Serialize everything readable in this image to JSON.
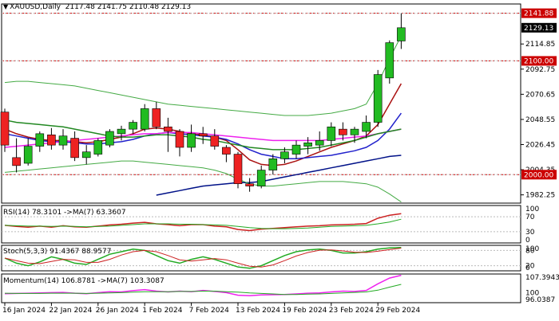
{
  "header": {
    "arrow_glyph": "▼",
    "symbol": "XAUUSD,Daily",
    "ohlc": "2117.48 2141.75 2110.48 2129.13"
  },
  "indicators": {
    "rsi": {
      "label": "RSI(14) 78.3101  ->MA(7) 63.3607",
      "levels": [
        100,
        70,
        30,
        0
      ]
    },
    "stoch": {
      "label": "Stoch(5,3,3) 91.4367 88.9577",
      "levels": [
        100,
        80,
        20,
        0
      ]
    },
    "momentum": {
      "label": "Momentum(14) 106.8781  ->MA(7) 103.3087",
      "levels": [
        107.3943,
        100,
        96.0387
      ]
    }
  },
  "colors": {
    "bull": "#22bb22",
    "bear": "#ee2222",
    "grid_line": "#cc0000",
    "ma_dark_red": "#aa1111",
    "ma_blue": "#2222cc",
    "ma_navy": "#001188",
    "ma_magenta": "#ee22ee",
    "ma_green": "#228822",
    "bb": "#44aa44",
    "slow_red": "#cc2222",
    "slow_green": "#22aa22"
  },
  "chart_data": [
    {
      "type": "candlestick",
      "title": "XAUUSD,Daily",
      "ylim": [
        1975,
        2150
      ],
      "y_ticks": [
        2114.85,
        2092.75,
        2070.65,
        2048.55,
        2026.45,
        2004.35,
        1982.25
      ],
      "price_badges": [
        {
          "value": 2141.88,
          "label": "2141.88",
          "style": "red"
        },
        {
          "value": 2129.13,
          "label": "2129.13",
          "style": "black"
        },
        {
          "value": 2100.0,
          "label": "2100.00",
          "style": "red"
        },
        {
          "value": 2000.0,
          "label": "2000.00",
          "style": "red"
        }
      ],
      "hlines": [
        2141.88,
        2100.0,
        2000.0
      ],
      "x_labels": [
        {
          "index": 0,
          "label": "16 Jan 2024"
        },
        {
          "index": 4,
          "label": "22 Jan 2024"
        },
        {
          "index": 8,
          "label": "26 Jan 2024"
        },
        {
          "index": 12,
          "label": "1 Feb 2024"
        },
        {
          "index": 16,
          "label": "7 Feb 2024"
        },
        {
          "index": 20,
          "label": "13 Feb 2024"
        },
        {
          "index": 24,
          "label": "19 Feb 2024"
        },
        {
          "index": 28,
          "label": "23 Feb 2024"
        },
        {
          "index": 32,
          "label": "29 Feb 2024"
        }
      ],
      "ohlc": [
        [
          2055,
          2058,
          2020,
          2026
        ],
        [
          2015,
          2032,
          2002,
          2008
        ],
        [
          2010,
          2032,
          2008,
          2025
        ],
        [
          2025,
          2038,
          2020,
          2036
        ],
        [
          2035,
          2041,
          2022,
          2026
        ],
        [
          2026,
          2040,
          2022,
          2034
        ],
        [
          2032,
          2038,
          2012,
          2015
        ],
        [
          2015,
          2026,
          2009,
          2020
        ],
        [
          2018,
          2032,
          2016,
          2030
        ],
        [
          2026,
          2040,
          2024,
          2038
        ],
        [
          2036,
          2043,
          2030,
          2040
        ],
        [
          2040,
          2048,
          2036,
          2046
        ],
        [
          2040,
          2062,
          2038,
          2058
        ],
        [
          2058,
          2064,
          2040,
          2042
        ],
        [
          2042,
          2050,
          2020,
          2038
        ],
        [
          2038,
          2040,
          2016,
          2024
        ],
        [
          2024,
          2044,
          2020,
          2036
        ],
        [
          2036,
          2042,
          2027,
          2034
        ],
        [
          2034,
          2040,
          2022,
          2025
        ],
        [
          2024,
          2026,
          2011,
          2018
        ],
        [
          2018,
          2020,
          1988,
          1992
        ],
        [
          1992,
          1997,
          1985,
          1990
        ],
        [
          1990,
          2008,
          1988,
          2004
        ],
        [
          2004,
          2018,
          2000,
          2014
        ],
        [
          2014,
          2024,
          2010,
          2020
        ],
        [
          2018,
          2030,
          2014,
          2026
        ],
        [
          2025,
          2033,
          2018,
          2028
        ],
        [
          2026,
          2038,
          2021,
          2030
        ],
        [
          2030,
          2046,
          2025,
          2042
        ],
        [
          2040,
          2046,
          2030,
          2035
        ],
        [
          2035,
          2042,
          2028,
          2040
        ],
        [
          2038,
          2052,
          2032,
          2046
        ],
        [
          2046,
          2092,
          2042,
          2088
        ],
        [
          2085,
          2118,
          2080,
          2116
        ],
        [
          2117.48,
          2141.75,
          2110.48,
          2129.13
        ]
      ],
      "series": [
        {
          "color": "ma_dark_red",
          "width": 1.5,
          "values": [
            2040,
            2036,
            2033,
            2031,
            2030,
            2030,
            2029,
            2028,
            2029,
            2031,
            2033,
            2036,
            2040,
            2041,
            2040,
            2038,
            2036,
            2035,
            2033,
            2030,
            2022,
            2013,
            2009,
            2008,
            2009,
            2012,
            2016,
            2020,
            2024,
            2027,
            2030,
            2034,
            2044,
            2062,
            2080
          ]
        },
        {
          "color": "ma_blue",
          "width": 1.5,
          "values": [
            2036,
            2034,
            2032,
            2030,
            2029,
            2029,
            2028,
            2027,
            2027,
            2028,
            2029,
            2031,
            2034,
            2036,
            2037,
            2036,
            2035,
            2034,
            2033,
            2031,
            2027,
            2022,
            2018,
            2016,
            2014,
            2014,
            2015,
            2016,
            2017,
            2019,
            2021,
            2024,
            2030,
            2040,
            2054
          ]
        },
        {
          "color": "ma_navy",
          "width": 1.5,
          "values": [
            null,
            null,
            null,
            null,
            null,
            null,
            null,
            null,
            null,
            null,
            null,
            null,
            null,
            1982,
            1984,
            1986,
            1988,
            1990,
            1991,
            1992,
            1993,
            1993,
            1994,
            1996,
            1998,
            2000,
            2002,
            2004,
            2006,
            2008,
            2010,
            2012,
            2014,
            2016,
            2017
          ]
        },
        {
          "color": "ma_magenta",
          "width": 1.5,
          "values": [
            2024,
            2025,
            2026,
            2027,
            2028,
            2029,
            2030,
            2031,
            2032,
            2033,
            2034,
            2035,
            2036,
            2036,
            2037,
            2037,
            2037,
            2036,
            2035,
            2034,
            2033,
            2032,
            2031,
            2030,
            2030,
            2030,
            2030,
            2030,
            2031,
            2032,
            2033,
            2034,
            2036,
            2038,
            2040
          ]
        },
        {
          "color": "ma_green",
          "width": 1.5,
          "values": [
            2048,
            2046,
            2045,
            2044,
            2043,
            2042,
            2040,
            2038,
            2036,
            2034,
            2033,
            2033,
            2034,
            2035,
            2035,
            2034,
            2033,
            2031,
            2030,
            2028,
            2026,
            2024,
            2023,
            2022,
            2022,
            2022,
            2023,
            2024,
            2026,
            2028,
            2030,
            2033,
            2036,
            2038,
            2040
          ]
        },
        {
          "color": "bb",
          "width": 1,
          "values": [
            2081,
            2082,
            2082,
            2081,
            2080,
            2079,
            2078,
            2076,
            2074,
            2072,
            2070,
            2068,
            2066,
            2064,
            2062,
            2061,
            2060,
            2059,
            2058,
            2057,
            2056,
            2055,
            2054,
            2053,
            2052,
            2052,
            2052,
            2053,
            2054,
            2056,
            2058,
            2062,
            2080,
            2102,
            2122
          ]
        },
        {
          "color": "bb",
          "width": 1,
          "values": [
            2002,
            2003,
            2004,
            2005,
            2006,
            2007,
            2008,
            2009,
            2010,
            2011,
            2012,
            2012,
            2011,
            2010,
            2009,
            2008,
            2007,
            2006,
            2004,
            2001,
            1996,
            1992,
            1990,
            1990,
            1991,
            1992,
            1993,
            1994,
            1994,
            1994,
            1993,
            1992,
            1989,
            1983,
            1976
          ]
        }
      ]
    },
    {
      "type": "line",
      "title": "RSI(14)",
      "ylim": [
        0,
        100
      ],
      "hlines": [
        70,
        30
      ],
      "series": [
        {
          "color": "slow_red",
          "width": 1.5,
          "values": [
            47,
            44,
            42,
            45,
            42,
            46,
            43,
            42,
            45,
            48,
            50,
            53,
            55,
            51,
            49,
            46,
            49,
            49,
            45,
            43,
            36,
            33,
            37,
            39,
            41,
            43,
            45,
            46,
            48,
            49,
            50,
            52,
            66,
            74,
            78.3101
          ]
        },
        {
          "color": "slow_green",
          "width": 1,
          "values": [
            47,
            46,
            45,
            45,
            44,
            45,
            44,
            43,
            44,
            45,
            47,
            49,
            51,
            51,
            51,
            50,
            50,
            49,
            48,
            47,
            44,
            41,
            39,
            38,
            38,
            39,
            40,
            42,
            44,
            45,
            46,
            47,
            51,
            56,
            63.3607
          ]
        }
      ]
    },
    {
      "type": "line",
      "title": "Stoch(5,3,3)",
      "ylim": [
        0,
        100
      ],
      "hlines": [
        80,
        20
      ],
      "series": [
        {
          "color": "slow_green",
          "width": 1.5,
          "values": [
            50,
            30,
            20,
            35,
            55,
            45,
            30,
            25,
            45,
            65,
            75,
            85,
            80,
            60,
            40,
            30,
            45,
            55,
            45,
            30,
            15,
            10,
            20,
            40,
            60,
            75,
            82,
            85,
            80,
            70,
            70,
            75,
            85,
            90,
            91.4367
          ]
        },
        {
          "color": "slow_red",
          "width": 1,
          "values": [
            50,
            40,
            30,
            28,
            37,
            45,
            43,
            33,
            33,
            45,
            62,
            75,
            80,
            75,
            60,
            43,
            38,
            43,
            48,
            43,
            30,
            18,
            15,
            23,
            40,
            58,
            72,
            81,
            82,
            78,
            73,
            72,
            77,
            83,
            88.9577
          ]
        }
      ]
    },
    {
      "type": "line",
      "title": "Momentum(14)",
      "ylim": [
        96.0387,
        107.3943
      ],
      "series": [
        {
          "color": "ma_magenta",
          "width": 1.5,
          "values": [
            99.6,
            99.7,
            99.8,
            99.9,
            100.0,
            100.1,
            99.8,
            99.6,
            100.0,
            100.4,
            100.3,
            100.8,
            101.2,
            100.6,
            100.3,
            100.6,
            100.4,
            100.9,
            100.5,
            100.0,
            99.0,
            98.8,
            99.1,
            99.2,
            99.3,
            99.5,
            99.8,
            99.9,
            100.3,
            100.6,
            100.5,
            100.9,
            103.5,
            105.8,
            106.8781
          ]
        },
        {
          "color": "slow_green",
          "width": 1,
          "values": [
            99.8,
            99.7,
            99.7,
            99.7,
            99.8,
            99.8,
            99.8,
            99.7,
            99.8,
            99.9,
            100.0,
            100.2,
            100.4,
            100.4,
            100.4,
            100.5,
            100.5,
            100.6,
            100.6,
            100.4,
            100.2,
            99.9,
            99.7,
            99.5,
            99.3,
            99.3,
            99.4,
            99.5,
            99.7,
            99.9,
            100.1,
            100.3,
            101.0,
            102.2,
            103.3087
          ]
        }
      ]
    }
  ]
}
